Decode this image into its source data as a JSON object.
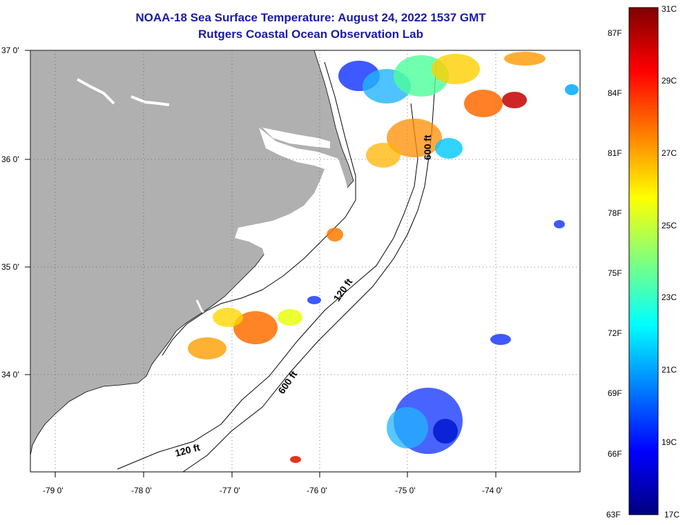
{
  "title": {
    "line1": "NOAA-18 Sea Surface Temperature:  August 24, 2022 1537 GMT",
    "line2": "Rutgers Coastal Ocean Observation Lab"
  },
  "map": {
    "lat_labels": [
      "37 0'",
      "36 0'",
      "35 0'",
      "34 0'"
    ],
    "lon_labels": [
      "-79 0'",
      "-78 0'",
      "-77 0'",
      "-76 0'",
      "-75 0'",
      "-74 0'"
    ],
    "contour_labels": [
      "600 ft",
      "120 ft",
      "600 ft",
      "120 ft"
    ],
    "colors": {
      "land": "#b0b0b0",
      "water_nodata": "#ffffff",
      "title": "#1a1aa6"
    }
  },
  "colorbar": {
    "f_labels": [
      "87F",
      "84F",
      "81F",
      "78F",
      "75F",
      "72F",
      "69F",
      "66F",
      "63F"
    ],
    "c_labels": [
      "31C",
      "29C",
      "27C",
      "25C",
      "23C",
      "21C",
      "19C",
      "17C"
    ],
    "stops": [
      "#00007f",
      "#0000ff",
      "#007fff",
      "#00ffff",
      "#7fff7f",
      "#ffff00",
      "#ff7f00",
      "#ff0000",
      "#7f0000"
    ]
  }
}
